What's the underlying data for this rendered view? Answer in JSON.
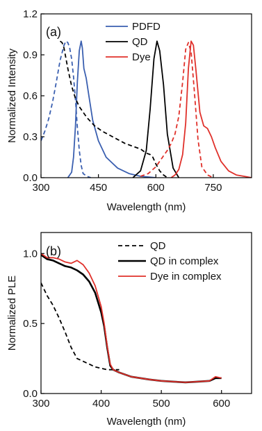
{
  "chart_data": [
    {
      "type": "line",
      "panel_label": "(a)",
      "xlabel": "Wavelength (nm)",
      "ylabel": "Normalized Intensity",
      "xlim": [
        300,
        850
      ],
      "ylim": [
        0,
        1.2
      ],
      "xticks": [
        "300",
        "450",
        "600",
        "750"
      ],
      "yticks": [
        "0.0",
        "0.3",
        "0.6",
        "0.9",
        "1.2"
      ],
      "xtick_values": [
        300,
        450,
        600,
        750
      ],
      "ytick_values": [
        0,
        0.3,
        0.6,
        0.9,
        1.2
      ],
      "legend_position": "top-right",
      "legend": [
        {
          "name": "PDFD",
          "color": "#3a5fb0",
          "dash": false
        },
        {
          "name": "QD",
          "color": "#000000",
          "dash": false
        },
        {
          "name": "Dye",
          "color": "#e0302a",
          "dash": false
        }
      ],
      "series": [
        {
          "name": "PDFD absorption",
          "color": "#3a5fb0",
          "dash": true,
          "x": [
            300,
            310,
            320,
            330,
            340,
            350,
            360,
            365,
            370,
            375,
            380,
            385,
            390,
            395,
            400,
            405,
            410,
            420,
            430
          ],
          "y": [
            0.27,
            0.34,
            0.43,
            0.55,
            0.7,
            0.86,
            0.97,
            1.0,
            0.99,
            0.95,
            0.87,
            0.74,
            0.57,
            0.37,
            0.2,
            0.09,
            0.03,
            0.01,
            0.0
          ]
        },
        {
          "name": "PDFD emission",
          "color": "#3a5fb0",
          "dash": false,
          "x": [
            370,
            380,
            385,
            390,
            395,
            400,
            405,
            408,
            412,
            418,
            425,
            435,
            450,
            470,
            500,
            530,
            560,
            600
          ],
          "y": [
            0.0,
            0.04,
            0.15,
            0.38,
            0.7,
            0.93,
            1.0,
            0.95,
            0.8,
            0.73,
            0.6,
            0.42,
            0.27,
            0.15,
            0.07,
            0.03,
            0.01,
            0.0
          ]
        },
        {
          "name": "QD absorption",
          "color": "#000000",
          "dash": true,
          "x": [
            350,
            355,
            360,
            370,
            380,
            390,
            400,
            420,
            440,
            460,
            480,
            500,
            520,
            540,
            560,
            575,
            585,
            592,
            600,
            610,
            620,
            630
          ],
          "y": [
            1.0,
            0.99,
            0.95,
            0.8,
            0.67,
            0.58,
            0.52,
            0.44,
            0.38,
            0.34,
            0.31,
            0.28,
            0.25,
            0.23,
            0.21,
            0.18,
            0.17,
            0.15,
            0.1,
            0.05,
            0.02,
            0.0
          ]
        },
        {
          "name": "QD emission",
          "color": "#000000",
          "dash": false,
          "x": [
            540,
            560,
            575,
            585,
            595,
            603,
            610,
            620,
            630,
            645,
            660
          ],
          "y": [
            0.0,
            0.05,
            0.2,
            0.5,
            0.87,
            1.0,
            0.93,
            0.68,
            0.32,
            0.07,
            0.0
          ]
        },
        {
          "name": "Dye absorption",
          "color": "#e0302a",
          "dash": true,
          "x": [
            560,
            580,
            600,
            620,
            630,
            640,
            650,
            660,
            670,
            678,
            685,
            692,
            700,
            710,
            720,
            735,
            750
          ],
          "y": [
            0.01,
            0.03,
            0.08,
            0.16,
            0.2,
            0.25,
            0.32,
            0.45,
            0.7,
            0.94,
            0.99,
            0.92,
            0.65,
            0.28,
            0.08,
            0.02,
            0.0
          ]
        },
        {
          "name": "Dye emission",
          "color": "#e0302a",
          "dash": false,
          "x": [
            640,
            650,
            660,
            670,
            678,
            685,
            692,
            698,
            705,
            715,
            725,
            735,
            745,
            755,
            770,
            790,
            810,
            830,
            850
          ],
          "y": [
            0.0,
            0.02,
            0.06,
            0.17,
            0.4,
            0.8,
            1.0,
            0.97,
            0.78,
            0.48,
            0.38,
            0.36,
            0.3,
            0.22,
            0.12,
            0.05,
            0.02,
            0.01,
            0.0
          ]
        }
      ]
    },
    {
      "type": "line",
      "panel_label": "(b)",
      "xlabel": "Wavelength (nm)",
      "ylabel": "Normalized PLE",
      "xlim": [
        300,
        650
      ],
      "ylim": [
        0,
        1.15
      ],
      "xticks": [
        "300",
        "400",
        "500",
        "600"
      ],
      "yticks": [
        "0.0",
        "0.5",
        "1.0"
      ],
      "xtick_values": [
        300,
        400,
        500,
        600
      ],
      "ytick_values": [
        0,
        0.5,
        1.0
      ],
      "legend_position": "top-right",
      "series": [
        {
          "name": "QD",
          "color": "#000000",
          "dash": true,
          "x": [
            300,
            310,
            320,
            330,
            340,
            350,
            360,
            370,
            380,
            390,
            400,
            410,
            420,
            430
          ],
          "y": [
            0.79,
            0.7,
            0.63,
            0.54,
            0.44,
            0.33,
            0.25,
            0.23,
            0.21,
            0.19,
            0.18,
            0.17,
            0.17,
            0.17
          ]
        },
        {
          "name": "QD in complex",
          "color": "#000000",
          "dash": false,
          "x": [
            300,
            310,
            320,
            330,
            340,
            350,
            360,
            370,
            380,
            390,
            400,
            405,
            410,
            415,
            420,
            430,
            450,
            480,
            500,
            520,
            540,
            560,
            580,
            590,
            600
          ],
          "y": [
            0.99,
            0.96,
            0.95,
            0.93,
            0.91,
            0.9,
            0.88,
            0.85,
            0.8,
            0.72,
            0.58,
            0.48,
            0.33,
            0.2,
            0.17,
            0.15,
            0.12,
            0.1,
            0.09,
            0.085,
            0.08,
            0.085,
            0.09,
            0.11,
            0.11
          ]
        },
        {
          "name": "Dye in complex",
          "color": "#e0302a",
          "dash": false,
          "x": [
            300,
            310,
            320,
            330,
            340,
            350,
            360,
            370,
            380,
            390,
            400,
            405,
            410,
            415,
            420,
            430,
            450,
            480,
            500,
            520,
            540,
            560,
            580,
            590,
            600
          ],
          "y": [
            1.0,
            0.97,
            0.97,
            0.96,
            0.94,
            0.93,
            0.95,
            0.92,
            0.86,
            0.77,
            0.62,
            0.5,
            0.34,
            0.21,
            0.17,
            0.15,
            0.12,
            0.1,
            0.09,
            0.085,
            0.08,
            0.085,
            0.09,
            0.12,
            0.11
          ]
        }
      ]
    }
  ]
}
